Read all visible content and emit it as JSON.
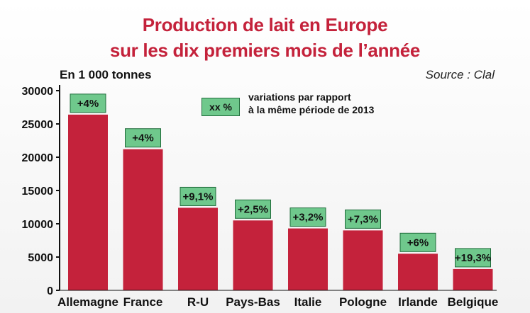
{
  "header": {
    "title_line1": "Production de lait en Europe",
    "title_line2": "sur les dix premiers mois de l’année",
    "unit": "En 1 000 tonnes",
    "source": "Source : Clal"
  },
  "legend": {
    "swatch_label": "xx %",
    "text_line1": "variations par rapport",
    "text_line2": "à la même période de 2013",
    "swatch_color": "#6fc88c"
  },
  "chart_data": {
    "type": "bar",
    "title": "Production de lait en Europe sur les dix premiers mois de l’année",
    "ylabel": "En 1 000 tonnes",
    "xlabel": "",
    "categories": [
      "Allemagne",
      "France",
      "R-U",
      "Pays-Bas",
      "Italie",
      "Pologne",
      "Irlande",
      "Belgique"
    ],
    "values": [
      26400,
      21200,
      12400,
      10500,
      9300,
      9000,
      5500,
      3200
    ],
    "variations": [
      "+4%",
      "+4%",
      "+9,1%",
      "+2,5%",
      "+3,2%",
      "+7,3%",
      "+6%",
      "+19,3%"
    ],
    "yticks": [
      "30000",
      "25000",
      "20000",
      "15000",
      "10000",
      "5000",
      "0"
    ],
    "ylim": [
      0,
      30000
    ],
    "grid": false,
    "bar_color": "#c4223b",
    "label_color": "#6fc88c"
  }
}
